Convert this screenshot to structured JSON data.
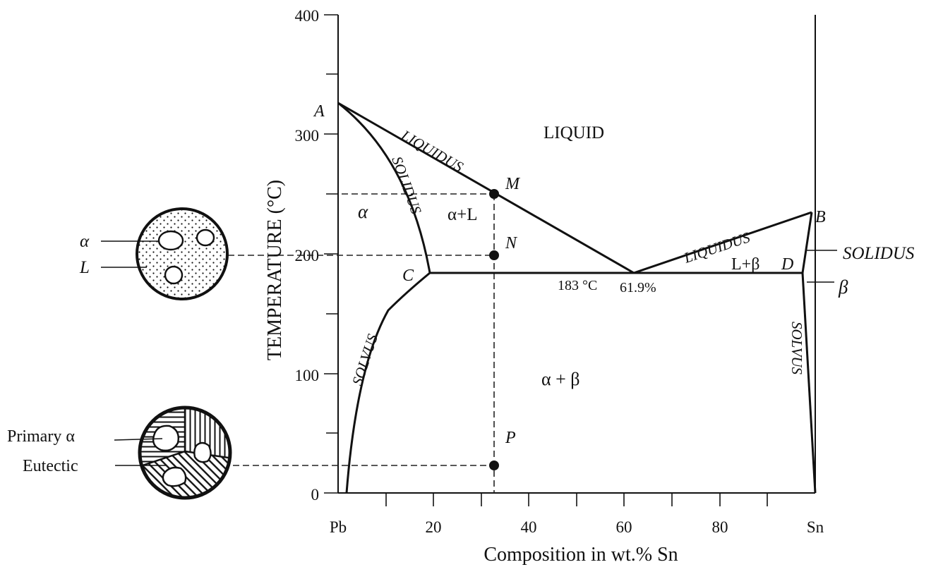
{
  "axes": {
    "ylabel": "TEMPERATURE (°C)",
    "xlabel": "Composition in wt.% Sn",
    "y_ticks": [
      "0",
      "100",
      "200",
      "300",
      "400"
    ],
    "x_ticks": [
      "Pb",
      "20",
      "40",
      "60",
      "80",
      "Sn"
    ]
  },
  "regions": {
    "liquid": "LIQUID",
    "alpha": "α",
    "alpha_l": "α+L",
    "l_beta": "L+β",
    "alpha_beta": "α + β"
  },
  "curves": {
    "liquidus_left": "LIQUIDUS",
    "liquidus_right": "LIQUIDUS",
    "solidus_left": "SOLIDUS",
    "solvus_left": "SOLVUS",
    "solvus_right": "SOLVUS"
  },
  "points": {
    "a": "A",
    "b": "B",
    "c": "C",
    "d": "D",
    "m": "M",
    "n": "N",
    "p": "P"
  },
  "eutectic": {
    "temperature": "183 °C",
    "composition": "61.9%"
  },
  "side_labels": {
    "solidus": "SOLIDUS",
    "beta": "β"
  },
  "micro_top": {
    "alpha": "α",
    "liquid": "L"
  },
  "micro_bottom": {
    "primary": "Primary α",
    "eutectic": "Eutectic"
  }
}
